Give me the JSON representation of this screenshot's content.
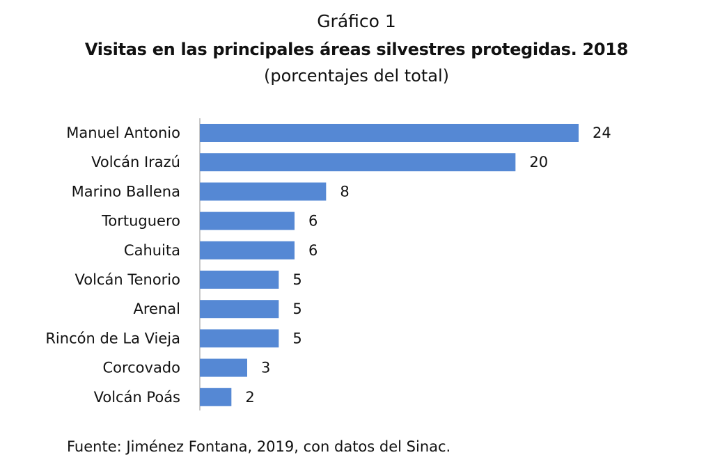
{
  "header": {
    "label": "Gráfico 1",
    "title": "Visitas en las principales áreas silvestres protegidas. 2018",
    "subtitle": "(porcentajes del total)"
  },
  "footer": {
    "source": "Fuente: Jiménez Fontana, 2019, con datos del Sinac."
  },
  "colors": {
    "bar": "#5588d4",
    "axis": "#c8c8c8",
    "text": "#111111"
  },
  "chart_data": {
    "type": "bar",
    "orientation": "horizontal",
    "categories": [
      "Manuel Antonio",
      "Volcán Irazú",
      "Marino Ballena",
      "Tortuguero",
      "Cahuita",
      "Volcán Tenorio",
      "Arenal",
      "Rincón de La Vieja",
      "Corcovado",
      "Volcán Poás"
    ],
    "values": [
      24,
      20,
      8,
      6,
      6,
      5,
      5,
      5,
      3,
      2
    ],
    "data_labels": true,
    "grid": false,
    "legend": "none"
  }
}
